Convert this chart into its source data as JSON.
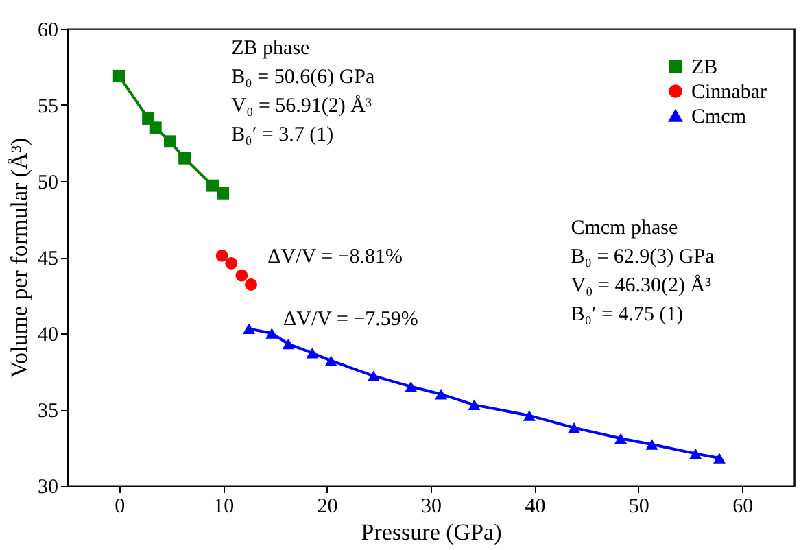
{
  "chart_data": {
    "type": "scatter",
    "xlabel": "Pressure (GPa)",
    "ylabel": "Volume per formular (Å³)",
    "series": [
      {
        "name": "ZB",
        "color": "#008000",
        "type": "line",
        "marker": "square",
        "x": [
          0,
          2.8,
          3.5,
          4.9,
          6.3,
          9.0,
          10.0
        ],
        "values": [
          56.9,
          54.1,
          53.5,
          52.6,
          51.5,
          49.7,
          49.2
        ]
      },
      {
        "name": "Cinnabar",
        "color": "#ff0000",
        "marker": "circle",
        "x": [
          9.9,
          10.8,
          11.8,
          12.7
        ],
        "values": [
          45.1,
          44.6,
          43.8,
          43.2
        ]
      },
      {
        "name": "Cmcm",
        "color": "#0000ff",
        "type": "line",
        "marker": "triangle",
        "x": [
          12.5,
          14.7,
          16.3,
          18.6,
          20.4,
          24.5,
          28.1,
          31.0,
          34.2,
          39.5,
          43.8,
          48.3,
          51.3,
          55.5,
          57.8
        ],
        "values": [
          40.3,
          40.0,
          39.3,
          38.7,
          38.2,
          37.2,
          36.5,
          36.0,
          35.3,
          34.6,
          33.8,
          33.1,
          32.7,
          32.1,
          31.8
        ]
      }
    ],
    "xlim": [
      -5,
      65
    ],
    "xticks": [
      0,
      10,
      20,
      30,
      40,
      50,
      60
    ],
    "ylim": [
      30,
      60
    ],
    "yticks": [
      30,
      35,
      40,
      45,
      50,
      55,
      60
    ],
    "grid": false,
    "legend": "top right",
    "annotations": [
      "ZB phase\nB₀ = 50.6(6) GPa\nV₀ = 56.91(2) Å³\nB₀′ = 3.7 (1)",
      "Cmcm phase\nB₀ = 62.9(3) GPa\nV₀ = 46.30(2) Å³\nB₀′ = 4.75 (1)",
      "ΔV/V = −8.81%",
      "ΔV/V = −7.59%"
    ]
  }
}
